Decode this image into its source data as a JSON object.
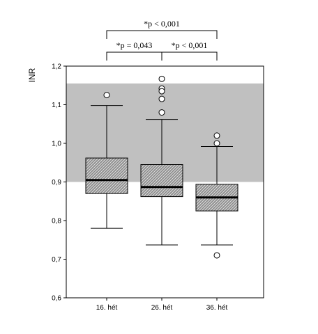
{
  "chart_data": {
    "type": "box",
    "title": "",
    "xlabel": "",
    "ylabel": "INR",
    "ylim": [
      0.6,
      1.2
    ],
    "yticks": [
      0.6,
      0.7,
      0.8,
      0.9,
      1.0,
      1.1,
      1.2
    ],
    "ytick_labels": [
      "0,6",
      "0,7",
      "0,8",
      "0,9",
      "1,0",
      "1,1",
      "1,2"
    ],
    "reference_band": {
      "low": 0.9,
      "high": 1.155,
      "color": "#c0c0c0"
    },
    "box_fill": "#8c8c8c",
    "categories": [
      "16. hét",
      "26. hét",
      "36. hét"
    ],
    "boxes": [
      {
        "category": "16. hét",
        "whisker_low": 0.78,
        "q1": 0.87,
        "median": 0.905,
        "q3": 0.962,
        "whisker_high": 1.098,
        "outliers": [
          1.125
        ]
      },
      {
        "category": "26. hét",
        "whisker_low": 0.737,
        "q1": 0.862,
        "median": 0.887,
        "q3": 0.945,
        "whisker_high": 1.062,
        "outliers": [
          1.167,
          1.142,
          1.135,
          1.115,
          1.08
        ]
      },
      {
        "category": "36. hét",
        "whisker_low": 0.737,
        "q1": 0.825,
        "median": 0.86,
        "q3": 0.894,
        "whisker_high": 0.992,
        "outliers": [
          1.02,
          1.0,
          0.71
        ]
      }
    ],
    "annotations": [
      {
        "text": "*p < 0,001",
        "from": 0,
        "to": 2,
        "level": 2
      },
      {
        "text": "*p < 0,001",
        "from": 1,
        "to": 2,
        "level": 1
      },
      {
        "text": "*p = 0,043",
        "from": 0,
        "to": 1,
        "level": 1
      }
    ]
  }
}
